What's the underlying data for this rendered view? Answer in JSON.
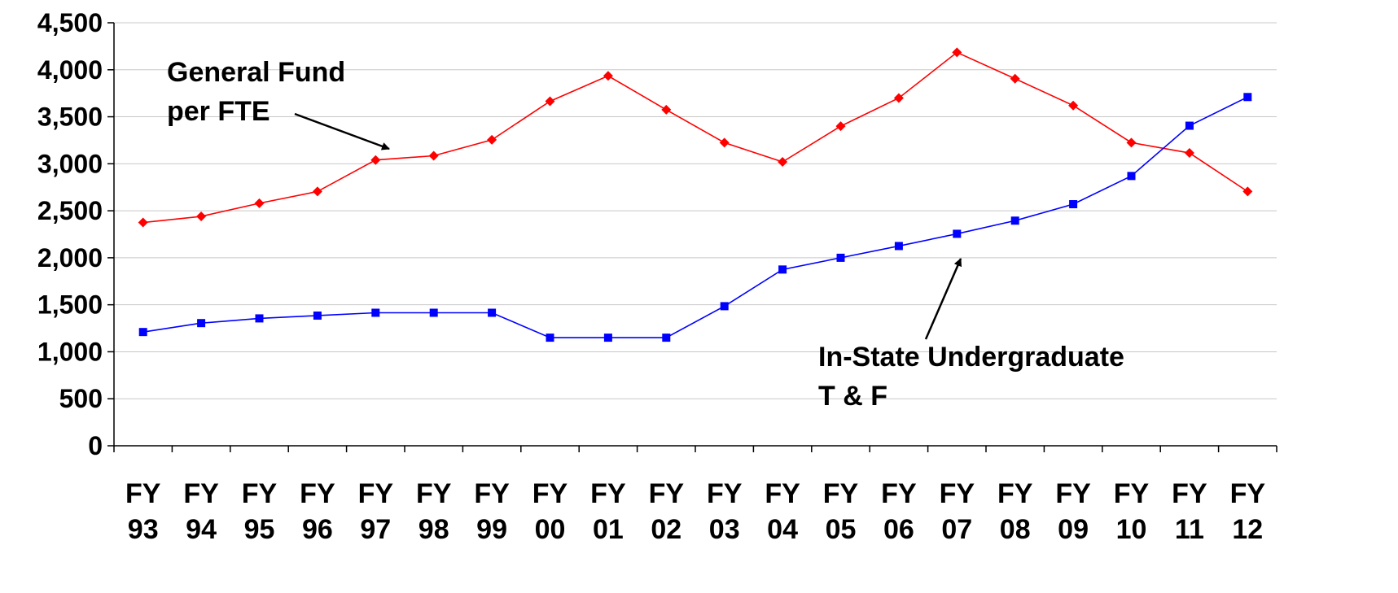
{
  "chart_data": {
    "type": "line",
    "categories": [
      "FY 93",
      "FY 94",
      "FY 95",
      "FY 96",
      "FY 97",
      "FY 98",
      "FY 99",
      "FY 00",
      "FY 01",
      "FY 02",
      "FY 03",
      "FY 04",
      "FY 05",
      "FY 06",
      "FY 07",
      "FY 08",
      "FY 09",
      "FY 10",
      "FY 11",
      "FY 12"
    ],
    "category_lines": [
      [
        "FY",
        "93"
      ],
      [
        "FY",
        "94"
      ],
      [
        "FY",
        "95"
      ],
      [
        "FY",
        "96"
      ],
      [
        "FY",
        "97"
      ],
      [
        "FY",
        "98"
      ],
      [
        "FY",
        "99"
      ],
      [
        "FY",
        "00"
      ],
      [
        "FY",
        "01"
      ],
      [
        "FY",
        "02"
      ],
      [
        "FY",
        "03"
      ],
      [
        "FY",
        "04"
      ],
      [
        "FY",
        "05"
      ],
      [
        "FY",
        "06"
      ],
      [
        "FY",
        "07"
      ],
      [
        "FY",
        "08"
      ],
      [
        "FY",
        "09"
      ],
      [
        "FY",
        "10"
      ],
      [
        "FY",
        "11"
      ],
      [
        "FY",
        "12"
      ]
    ],
    "ylim": [
      0,
      4500
    ],
    "yticks": [
      0,
      500,
      1000,
      1500,
      2000,
      2500,
      3000,
      3500,
      4000,
      4500
    ],
    "ytick_labels": [
      "0",
      "500",
      "1,000",
      "1,500",
      "2,000",
      "2,500",
      "3,000",
      "3,500",
      "4,000",
      "4,500"
    ],
    "grid": "horizontal",
    "series": [
      {
        "name": "General Fund per FTE",
        "color": "#ff0000",
        "marker": "diamond",
        "values": [
          2375,
          2440,
          2580,
          2705,
          3040,
          3085,
          3255,
          3665,
          3935,
          3575,
          3225,
          3020,
          3400,
          3700,
          4185,
          3905,
          3620,
          3225,
          3115,
          2705
        ]
      },
      {
        "name": "In-State Undergraduate T & F",
        "color": "#0000ff",
        "marker": "square",
        "values": [
          1210,
          1305,
          1355,
          1385,
          1415,
          1415,
          1415,
          1150,
          1150,
          1150,
          1485,
          1875,
          2000,
          2125,
          2255,
          2395,
          2570,
          2870,
          3405,
          3710
        ]
      }
    ],
    "annotations": [
      {
        "lines": [
          "General Fund",
          "per FTE"
        ],
        "series_index": 0
      },
      {
        "lines": [
          "In-State Undergraduate",
          "T & F"
        ],
        "series_index": 1
      }
    ]
  }
}
